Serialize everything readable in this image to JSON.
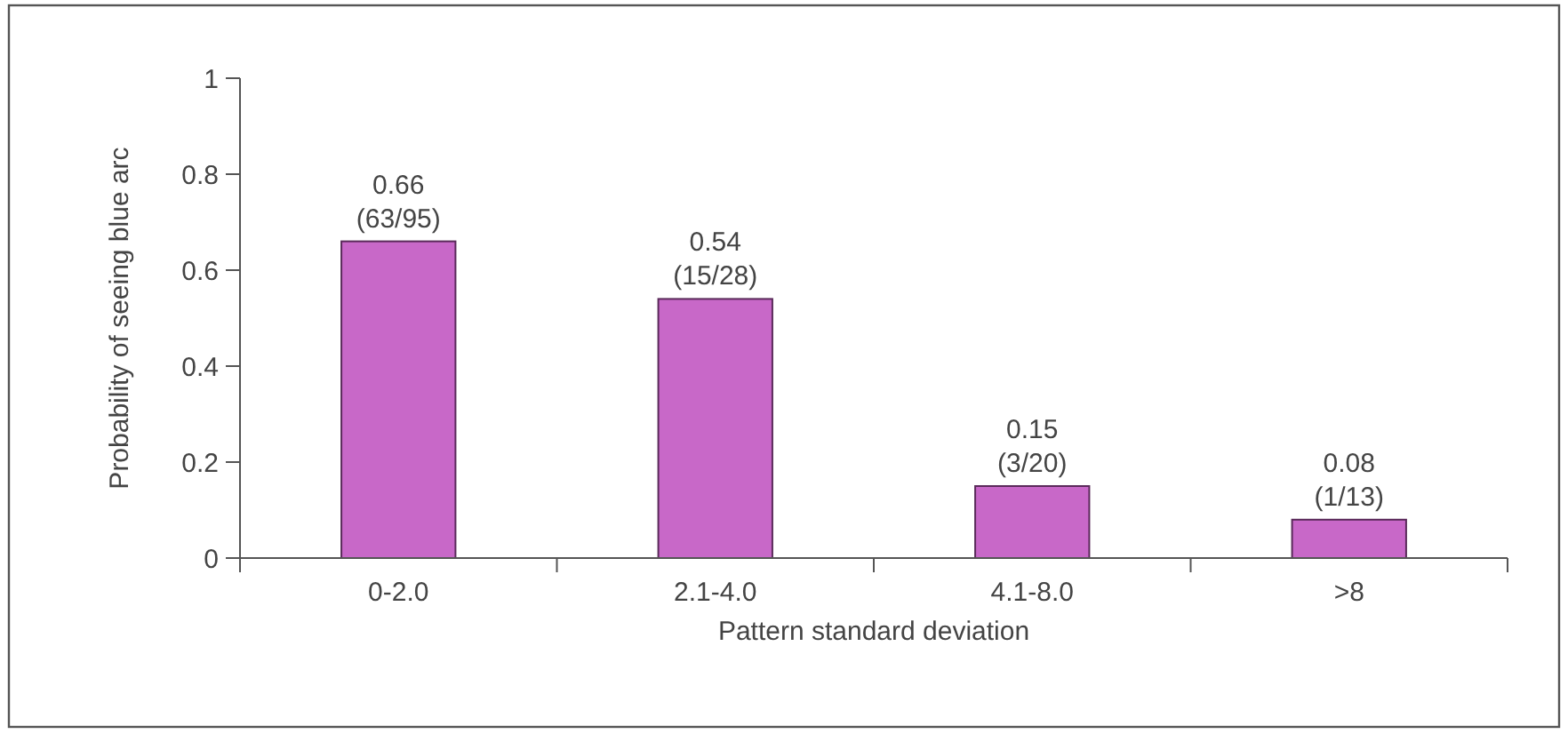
{
  "chart_data": {
    "type": "bar",
    "xlabel": "Pattern standard deviation",
    "ylabel": "Probability of seeing blue arc",
    "categories": [
      "0-2.0",
      "2.1-4.0",
      "4.1-8.0",
      ">8"
    ],
    "values": [
      0.66,
      0.54,
      0.15,
      0.08
    ],
    "value_labels": [
      "0.66\n(63/95)",
      "0.54\n(15/28)",
      "0.15\n(3/20)",
      "0.08\n(1/13)"
    ],
    "color": "#c868c8",
    "ylim": [
      0,
      1
    ],
    "yticks": [
      0,
      0.2,
      0.4,
      0.6,
      0.8,
      1
    ],
    "grid": false
  }
}
